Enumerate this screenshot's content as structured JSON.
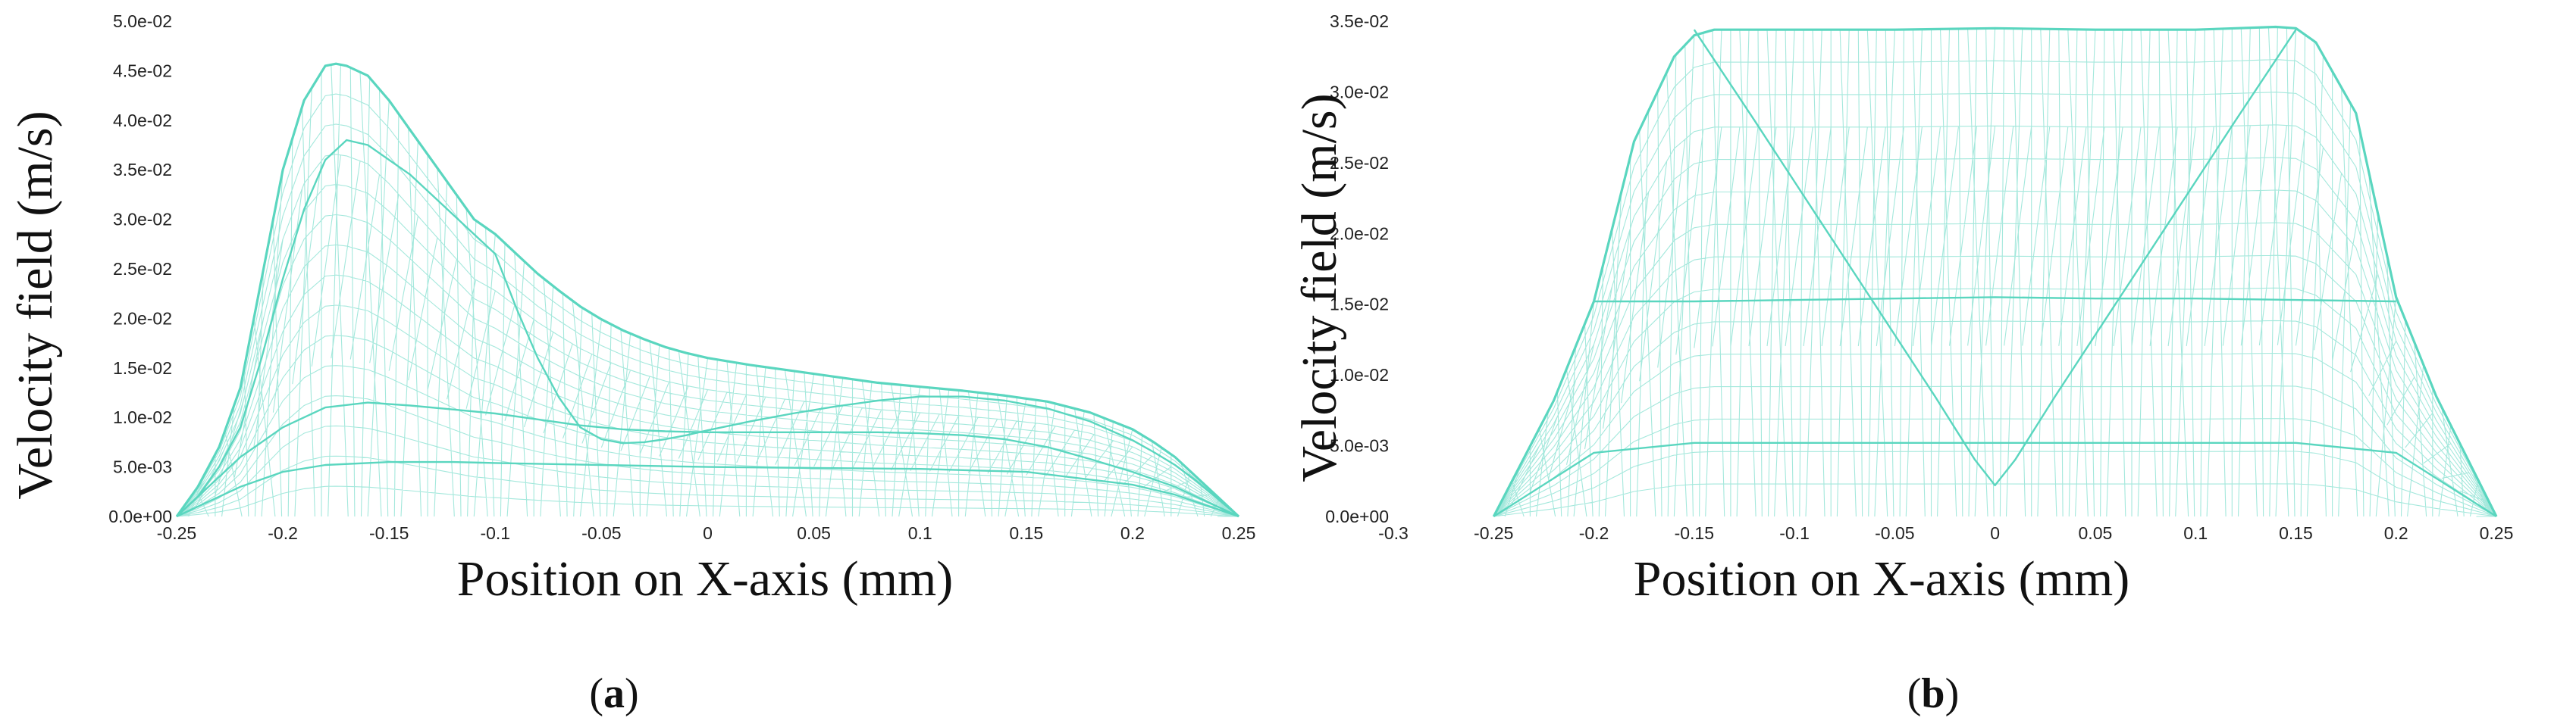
{
  "chart_data": [
    {
      "type": "line",
      "panel_label": "a",
      "xlabel": "Position on X-axis (mm)",
      "ylabel": "Velocity field (m/s)",
      "xlim": [
        -0.25,
        0.25
      ],
      "ylim": [
        0,
        0.05
      ],
      "x_ticks": [
        "-0.25",
        "-0.2",
        "-0.15",
        "-0.1",
        "-0.05",
        "0",
        "0.05",
        "0.1",
        "0.15",
        "0.2",
        "0.25"
      ],
      "y_ticks": [
        "0.0e+00",
        "5.0e-03",
        "1.0e-02",
        "1.5e-02",
        "2.0e-02",
        "2.5e-02",
        "3.0e-02",
        "3.5e-02",
        "4.0e-02",
        "4.5e-02",
        "5.0e-02"
      ],
      "line_color": "#5ad6bf",
      "series": [
        {
          "x": [
            -0.25,
            -0.24,
            -0.23,
            -0.22,
            -0.21,
            -0.2,
            -0.19,
            -0.18,
            -0.175,
            -0.17,
            -0.16,
            -0.15,
            -0.14,
            -0.13,
            -0.12,
            -0.11,
            -0.1,
            -0.09,
            -0.08,
            -0.07,
            -0.06,
            -0.05,
            -0.04,
            -0.03,
            -0.02,
            -0.01,
            0.0,
            0.02,
            0.04,
            0.06,
            0.08,
            0.1,
            0.12,
            0.14,
            0.16,
            0.18,
            0.2,
            0.21,
            0.22,
            0.23,
            0.24,
            0.25
          ],
          "y": [
            0.0,
            0.003,
            0.007,
            0.013,
            0.024,
            0.035,
            0.042,
            0.0455,
            0.0457,
            0.0455,
            0.0445,
            0.042,
            0.039,
            0.036,
            0.033,
            0.03,
            0.0285,
            0.0265,
            0.0245,
            0.0228,
            0.0212,
            0.0199,
            0.0188,
            0.0179,
            0.0171,
            0.0165,
            0.016,
            0.0153,
            0.0147,
            0.0141,
            0.0135,
            0.0131,
            0.0127,
            0.0122,
            0.0116,
            0.0105,
            0.0088,
            0.0075,
            0.006,
            0.004,
            0.002,
            0.0
          ]
        },
        {
          "x": [
            -0.25,
            -0.24,
            -0.23,
            -0.22,
            -0.21,
            -0.2,
            -0.19,
            -0.18,
            -0.17,
            -0.16,
            -0.15,
            -0.14,
            -0.13,
            -0.12,
            -0.11,
            -0.1,
            -0.09,
            -0.08,
            -0.07,
            -0.06,
            -0.05,
            -0.04,
            -0.03,
            -0.02,
            -0.01,
            0.0,
            0.02,
            0.04,
            0.06,
            0.08,
            0.1,
            0.12,
            0.14,
            0.16,
            0.18,
            0.2,
            0.21,
            0.22,
            0.23,
            0.24,
            0.25
          ],
          "y": [
            0.0,
            0.002,
            0.005,
            0.009,
            0.016,
            0.024,
            0.031,
            0.036,
            0.038,
            0.0375,
            0.036,
            0.0345,
            0.0325,
            0.0305,
            0.0285,
            0.0265,
            0.021,
            0.016,
            0.012,
            0.009,
            0.0078,
            0.0074,
            0.0075,
            0.0078,
            0.0082,
            0.0087,
            0.0096,
            0.0104,
            0.0111,
            0.0117,
            0.0121,
            0.0121,
            0.0117,
            0.0109,
            0.0096,
            0.0077,
            0.0065,
            0.0052,
            0.0036,
            0.0018,
            0.0
          ]
        },
        {
          "x": [
            -0.25,
            -0.22,
            -0.2,
            -0.18,
            -0.16,
            -0.14,
            -0.12,
            -0.1,
            -0.08,
            -0.06,
            -0.04,
            -0.02,
            0.0,
            0.02,
            0.04,
            0.06,
            0.08,
            0.1,
            0.12,
            0.14,
            0.16,
            0.18,
            0.2,
            0.22,
            0.25
          ],
          "y": [
            0.0,
            0.006,
            0.009,
            0.011,
            0.0115,
            0.0112,
            0.0108,
            0.0104,
            0.0098,
            0.0092,
            0.0088,
            0.0086,
            0.0085,
            0.0085,
            0.0085,
            0.0085,
            0.0085,
            0.0084,
            0.0082,
            0.0078,
            0.007,
            0.0058,
            0.0045,
            0.003,
            0.0
          ]
        },
        {
          "x": [
            -0.25,
            -0.22,
            -0.2,
            -0.18,
            -0.15,
            -0.12,
            -0.1,
            -0.05,
            0.0,
            0.05,
            0.1,
            0.15,
            0.2,
            0.22,
            0.25
          ],
          "y": [
            0.0,
            0.003,
            0.0045,
            0.0052,
            0.0055,
            0.0055,
            0.0054,
            0.0052,
            0.005,
            0.0049,
            0.0048,
            0.0045,
            0.0032,
            0.0022,
            0.0
          ]
        }
      ]
    },
    {
      "type": "line",
      "panel_label": "b",
      "xlabel": "Position on X-axis (mm)",
      "ylabel": "Velocity field (m/s)",
      "xlim": [
        -0.3,
        0.25
      ],
      "ylim": [
        0,
        0.035
      ],
      "x_ticks": [
        "-0.3",
        "-0.25",
        "-0.2",
        "-0.15",
        "-0.1",
        "-0.05",
        "0",
        "0.05",
        "0.1",
        "0.15",
        "0.2",
        "0.25"
      ],
      "y_ticks": [
        "0.0e+00",
        "5.0e-03",
        "1.0e-02",
        "1.5e-02",
        "2.0e-02",
        "2.5e-02",
        "3.0e-02",
        "3.5e-02"
      ],
      "line_color": "#5ad6bf",
      "series": [
        {
          "x": [
            -0.25,
            -0.22,
            -0.2,
            -0.18,
            -0.16,
            -0.15,
            -0.14,
            -0.1,
            -0.05,
            0.0,
            0.05,
            0.1,
            0.14,
            0.15,
            0.16,
            0.18,
            0.2,
            0.22,
            0.25
          ],
          "y": [
            0.0,
            0.0082,
            0.0152,
            0.0265,
            0.0325,
            0.034,
            0.0344,
            0.0344,
            0.0344,
            0.0345,
            0.0344,
            0.0344,
            0.0346,
            0.0345,
            0.0335,
            0.0285,
            0.0155,
            0.0085,
            0.0
          ]
        },
        {
          "x": [
            -0.15,
            -0.12,
            -0.09,
            -0.06,
            -0.03,
            -0.01,
            0.0,
            0.01,
            0.03,
            0.06,
            0.09,
            0.12,
            0.15
          ],
          "y": [
            0.0344,
            0.028,
            0.0215,
            0.015,
            0.0085,
            0.004,
            0.0022,
            0.004,
            0.0085,
            0.015,
            0.0215,
            0.028,
            0.0344
          ]
        },
        {
          "x": [
            -0.2,
            -0.15,
            -0.1,
            -0.05,
            0.0,
            0.05,
            0.1,
            0.15,
            0.2
          ],
          "y": [
            0.0152,
            0.0152,
            0.0153,
            0.0154,
            0.0155,
            0.0154,
            0.0154,
            0.0153,
            0.0152
          ]
        },
        {
          "x": [
            -0.25,
            -0.2,
            -0.15,
            -0.1,
            -0.05,
            0.0,
            0.05,
            0.1,
            0.15,
            0.2,
            0.25
          ],
          "y": [
            0.0,
            0.0045,
            0.0052,
            0.0052,
            0.0052,
            0.0052,
            0.0052,
            0.0052,
            0.0052,
            0.0045,
            0.0
          ]
        }
      ]
    }
  ]
}
